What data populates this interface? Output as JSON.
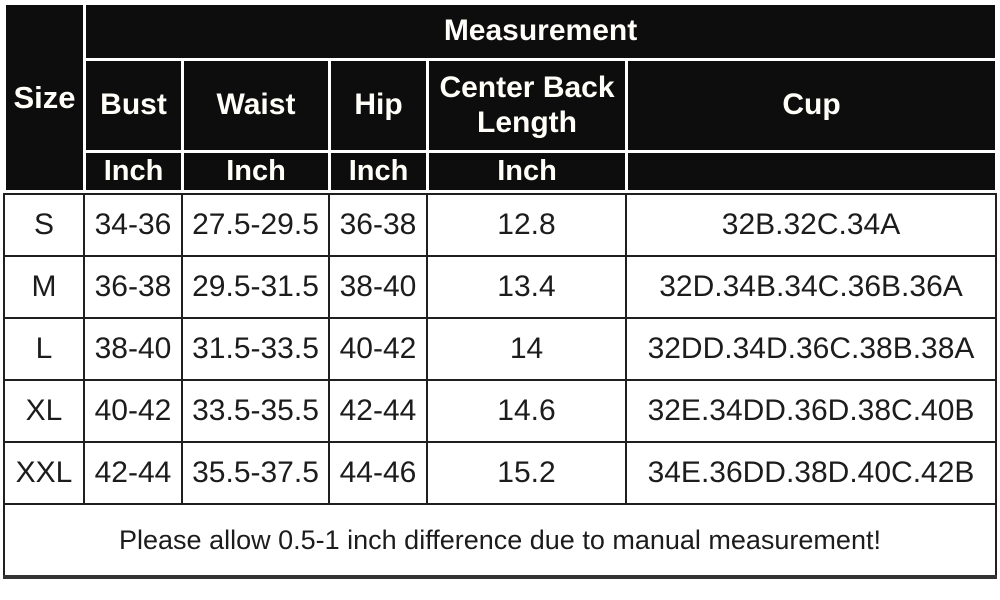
{
  "size_chart": {
    "corner_header": "Size",
    "group_header": "Measurement",
    "columns": [
      {
        "label": "Bust",
        "unit": "Inch"
      },
      {
        "label": "Waist",
        "unit": "Inch"
      },
      {
        "label": "Hip",
        "unit": "Inch"
      },
      {
        "label": "Center Back Length",
        "unit": "Inch"
      },
      {
        "label": "Cup",
        "unit": ""
      }
    ],
    "rows": [
      {
        "size": "S",
        "bust": "34-36",
        "waist": "27.5-29.5",
        "hip": "36-38",
        "center_back_length": "12.8",
        "cup": "32B.32C.34A"
      },
      {
        "size": "M",
        "bust": "36-38",
        "waist": "29.5-31.5",
        "hip": "38-40",
        "center_back_length": "13.4",
        "cup": "32D.34B.34C.36B.36A"
      },
      {
        "size": "L",
        "bust": "38-40",
        "waist": "31.5-33.5",
        "hip": "40-42",
        "center_back_length": "14",
        "cup": "32DD.34D.36C.38B.38A"
      },
      {
        "size": "XL",
        "bust": "40-42",
        "waist": "33.5-35.5",
        "hip": "42-44",
        "center_back_length": "14.6",
        "cup": "32E.34DD.36D.38C.40B"
      },
      {
        "size": "XXL",
        "bust": "42-44",
        "waist": "35.5-37.5",
        "hip": "44-46",
        "center_back_length": "15.2",
        "cup": "34E.36DD.38D.40C.42B"
      }
    ],
    "footnote": "Please allow 0.5-1 inch difference due to manual measurement!",
    "colors": {
      "header_bg": "#0d0d0d",
      "header_text": "#ffffff",
      "body_bg": "#ffffff",
      "body_text": "#1c1c1c",
      "grid_border": "#1f1f1f"
    }
  }
}
